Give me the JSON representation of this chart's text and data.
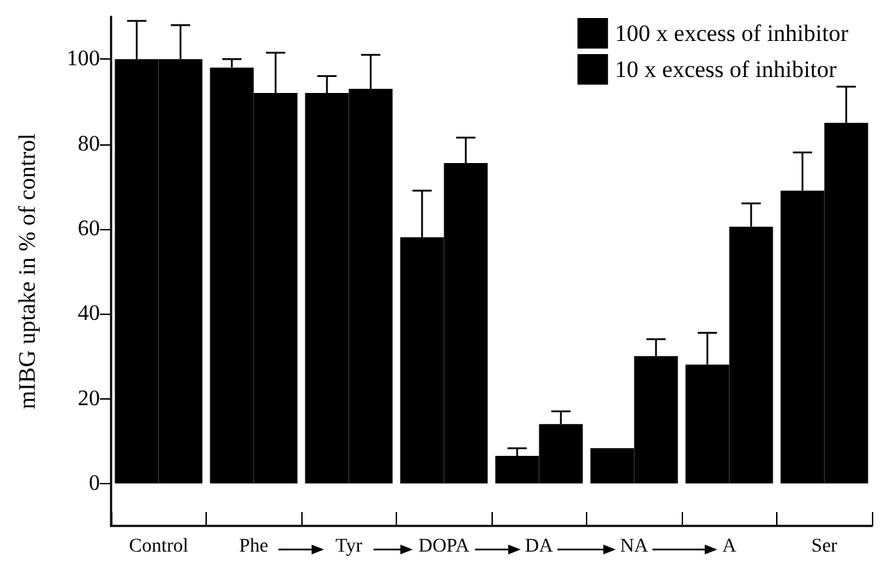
{
  "chart_data": {
    "type": "bar",
    "ylabel": "mIBG uptake in % of control",
    "categories": [
      "Control",
      "Phe",
      "Tyr",
      "DOPA",
      "DA",
      "NA",
      "A",
      "Ser"
    ],
    "series": [
      {
        "name": "100 x excess of inhibitor",
        "color": "#000000",
        "values": [
          100,
          98,
          92,
          58,
          6.5,
          8.3,
          28,
          69
        ],
        "errors": [
          [
            100,
            109
          ],
          [
            98,
            100
          ],
          [
            92,
            96
          ],
          [
            58,
            69
          ],
          [
            6.5,
            8.3
          ],
          null,
          [
            28,
            35.5
          ],
          [
            69,
            78
          ]
        ]
      },
      {
        "name": "10 x excess of inhibitor",
        "color": "#000000",
        "values": [
          100,
          92,
          93,
          75.5,
          14,
          30,
          60.5,
          85
        ],
        "errors": [
          [
            100,
            108
          ],
          [
            92,
            101.5
          ],
          [
            93,
            101
          ],
          [
            75.5,
            81.5
          ],
          [
            14,
            17
          ],
          [
            30,
            34
          ],
          [
            60.5,
            66
          ],
          [
            85,
            93.5
          ]
        ]
      }
    ],
    "ylim": [
      -10,
      110
    ],
    "yticks": [
      0,
      20,
      40,
      60,
      80,
      100
    ],
    "grid": false,
    "legend": "top right"
  }
}
